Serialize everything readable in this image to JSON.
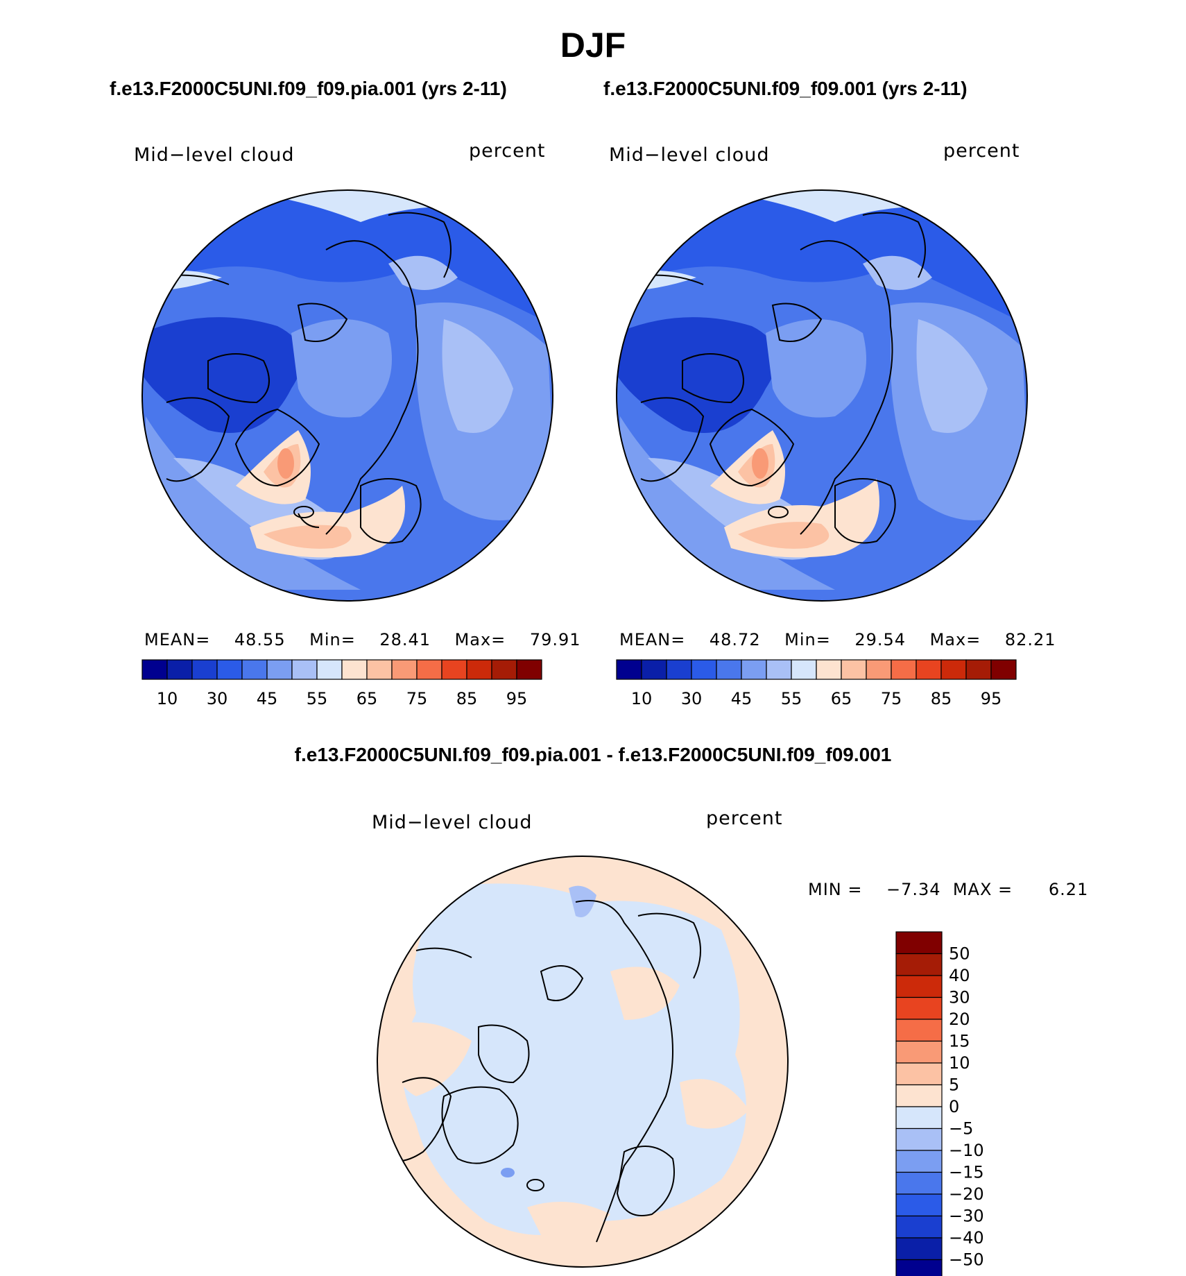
{
  "title": "DJF",
  "colors": {
    "levels_palette": [
      "#00008f",
      "#0a1fa8",
      "#1a3fd0",
      "#2b5be8",
      "#4a77ec",
      "#7b9ef2",
      "#a9c0f6",
      "#d6e6fb",
      "#fde3d0",
      "#fcc2a4",
      "#f99a76",
      "#f56d47",
      "#e84420",
      "#cc2a0a",
      "#a51c06",
      "#800000"
    ],
    "land_outline": "#000000"
  },
  "panels": [
    {
      "case": "f.e13.F2000C5UNI.f09_f09.pia.001 (yrs 2-11)",
      "variable": "Mid−level cloud",
      "units": "percent",
      "stats": {
        "mean_label": "MEAN=",
        "mean": "48.55",
        "min_label": "Min=",
        "min": "28.41",
        "max_label": "Max=",
        "max": "79.91"
      }
    },
    {
      "case": "f.e13.F2000C5UNI.f09_f09.001 (yrs 2-11)",
      "variable": "Mid−level cloud",
      "units": "percent",
      "stats": {
        "mean_label": "MEAN=",
        "mean": "48.72",
        "min_label": "Min=",
        "min": "29.54",
        "max_label": "Max=",
        "max": "82.21"
      }
    }
  ],
  "difference": {
    "title": "f.e13.F2000C5UNI.f09_f09.pia.001 - f.e13.F2000C5UNI.f09_f09.001",
    "variable": "Mid−level cloud",
    "units": "percent",
    "stats": {
      "min_label": "MIN =",
      "min": "−7.34",
      "max_label": "MAX =",
      "max": "6.21"
    }
  },
  "chart_data": [
    {
      "type": "heatmap",
      "title": "f.e13.F2000C5UNI.f09_f09.pia.001 (yrs 2-11)",
      "projection": "north polar stereographic",
      "colorbar_levels": [
        "10",
        "30",
        "45",
        "55",
        "65",
        "75",
        "85",
        "95"
      ],
      "mean": 48.55,
      "min": 28.41,
      "max": 79.91,
      "units": "percent"
    },
    {
      "type": "heatmap",
      "title": "f.e13.F2000C5UNI.f09_f09.001 (yrs 2-11)",
      "projection": "north polar stereographic",
      "colorbar_levels": [
        "10",
        "30",
        "45",
        "55",
        "65",
        "75",
        "85",
        "95"
      ],
      "mean": 48.72,
      "min": 29.54,
      "max": 82.21,
      "units": "percent"
    },
    {
      "type": "heatmap",
      "title": "f.e13.F2000C5UNI.f09_f09.pia.001 - f.e13.F2000C5UNI.f09_f09.001",
      "projection": "north polar stereographic",
      "colorbar_levels": [
        "50",
        "40",
        "30",
        "20",
        "15",
        "10",
        "5",
        "0",
        "−5",
        "−10",
        "−15",
        "−20",
        "−30",
        "−40",
        "−50"
      ],
      "min": -7.34,
      "max": 6.21,
      "units": "percent"
    }
  ]
}
